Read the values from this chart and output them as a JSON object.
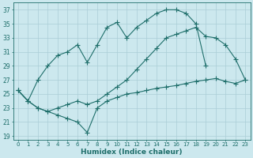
{
  "xlabel": "Humidex (Indice chaleur)",
  "background_color": "#cce8ee",
  "grid_color": "#aacdd6",
  "line_color": "#1e6e6a",
  "xlim": [
    -0.5,
    23.5
  ],
  "ylim": [
    18.5,
    38
  ],
  "xticks": [
    0,
    1,
    2,
    3,
    4,
    5,
    6,
    7,
    8,
    9,
    10,
    11,
    12,
    13,
    14,
    15,
    16,
    17,
    18,
    19,
    20,
    21,
    22,
    23
  ],
  "yticks": [
    19,
    21,
    23,
    25,
    27,
    29,
    31,
    33,
    35,
    37
  ],
  "curve1_x": [
    0,
    1,
    2,
    3,
    4,
    5,
    6,
    7,
    8,
    9,
    10,
    11,
    12,
    13,
    14,
    15,
    16,
    17,
    18,
    19
  ],
  "curve1_y": [
    25.5,
    24.0,
    27.0,
    29.0,
    30.5,
    31.0,
    32.0,
    29.5,
    32.0,
    34.5,
    35.2,
    33.0,
    34.5,
    35.5,
    36.5,
    37.0,
    37.0,
    36.5,
    35.0,
    29.0
  ],
  "curve2_x": [
    0,
    1,
    2,
    3,
    4,
    5,
    6,
    7,
    8,
    9,
    10,
    11,
    12,
    13,
    14,
    15,
    16,
    17,
    18,
    19,
    20,
    21,
    22,
    23
  ],
  "curve2_y": [
    25.5,
    24.0,
    23.0,
    22.5,
    23.0,
    23.5,
    24.0,
    23.5,
    24.0,
    25.0,
    26.0,
    27.0,
    28.5,
    30.0,
    31.5,
    33.0,
    33.5,
    34.0,
    34.5,
    33.2,
    33.0,
    32.0,
    30.0,
    27.0
  ],
  "curve3_x": [
    0,
    1,
    2,
    3,
    4,
    5,
    6,
    7,
    8,
    9,
    10,
    11,
    12,
    13,
    14,
    15,
    16,
    17,
    18,
    19,
    20,
    21,
    22,
    23
  ],
  "curve3_y": [
    25.5,
    24.0,
    23.0,
    22.5,
    22.0,
    21.5,
    21.0,
    19.5,
    23.0,
    24.0,
    24.5,
    25.0,
    25.2,
    25.5,
    25.8,
    26.0,
    26.2,
    26.5,
    26.8,
    27.0,
    27.2,
    26.8,
    26.5,
    27.0
  ]
}
